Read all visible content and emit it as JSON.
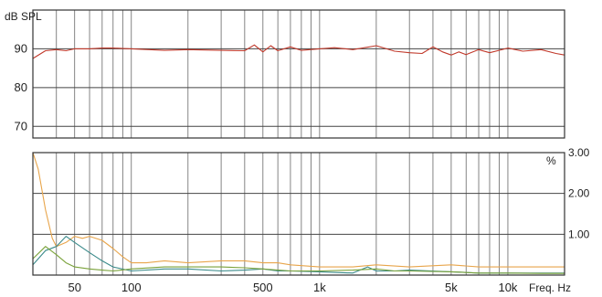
{
  "chart_data": [
    {
      "type": "line",
      "ylabel": "dB SPL",
      "xscale": "log",
      "xlim": [
        30,
        20000
      ],
      "ylim": [
        67,
        100
      ],
      "yticks": [
        90,
        80,
        70
      ],
      "grid": true,
      "series": [
        {
          "color": "#c0392b",
          "x": [
            30,
            35,
            40,
            45,
            50,
            60,
            70,
            80,
            100,
            150,
            200,
            300,
            400,
            450,
            500,
            550,
            600,
            700,
            800,
            1000,
            1200,
            1500,
            2000,
            2500,
            3000,
            3500,
            4000,
            4500,
            5000,
            5500,
            6000,
            7000,
            8000,
            10000,
            12000,
            15000,
            18000,
            20000
          ],
          "y": [
            87.5,
            89.5,
            89.8,
            89.5,
            90,
            90,
            90.2,
            90.2,
            90,
            89.6,
            89.8,
            89.6,
            89.5,
            91,
            89.2,
            90.8,
            89.5,
            90.5,
            89.6,
            90,
            90.3,
            89.8,
            90.8,
            89.4,
            89,
            88.8,
            90.5,
            89.2,
            88.4,
            89.2,
            88.5,
            89.8,
            89,
            90.2,
            89.4,
            89.8,
            88.8,
            88.4
          ]
        }
      ]
    },
    {
      "type": "line",
      "xlabel": "Freq. Hz",
      "xscale": "log",
      "xlim": [
        30,
        20000
      ],
      "ylim": [
        0,
        3.0
      ],
      "yunit": "%",
      "yticks": [
        {
          "value": 3.0,
          "label": "3.00"
        },
        {
          "value": 2.0,
          "label": "2.00"
        },
        {
          "value": 1.0,
          "label": "1.00"
        }
      ],
      "xticks": [
        {
          "value": 50,
          "label": "50"
        },
        {
          "value": 100,
          "label": "100"
        },
        {
          "value": 500,
          "label": "500"
        },
        {
          "value": 1000,
          "label": "1k"
        },
        {
          "value": 5000,
          "label": "5k"
        },
        {
          "value": 10000,
          "label": "10k"
        }
      ],
      "grid": true,
      "series": [
        {
          "color": "#e8a54b",
          "x": [
            30,
            32,
            35,
            38,
            40,
            45,
            50,
            55,
            60,
            70,
            80,
            90,
            100,
            120,
            150,
            200,
            300,
            400,
            500,
            600,
            700,
            1000,
            1500,
            2000,
            3000,
            5000,
            7000,
            10000,
            15000,
            20000
          ],
          "y": [
            3.0,
            2.6,
            1.6,
            0.9,
            0.7,
            0.8,
            0.95,
            0.9,
            0.95,
            0.85,
            0.65,
            0.45,
            0.3,
            0.3,
            0.35,
            0.3,
            0.35,
            0.35,
            0.3,
            0.3,
            0.25,
            0.2,
            0.2,
            0.25,
            0.2,
            0.25,
            0.2,
            0.2,
            0.2,
            0.2
          ]
        },
        {
          "color": "#3a8a8a",
          "x": [
            30,
            35,
            40,
            45,
            50,
            60,
            70,
            80,
            100,
            150,
            200,
            300,
            400,
            500,
            600,
            700,
            1000,
            1500,
            1800,
            2000,
            2500,
            3000,
            5000,
            7000,
            10000,
            15000,
            20000
          ],
          "y": [
            0.25,
            0.6,
            0.7,
            0.95,
            0.8,
            0.55,
            0.35,
            0.2,
            0.1,
            0.15,
            0.15,
            0.1,
            0.12,
            0.15,
            0.1,
            0.1,
            0.08,
            0.05,
            0.2,
            0.1,
            0.1,
            0.12,
            0.08,
            0.05,
            0.05,
            0.05,
            0.05
          ]
        },
        {
          "color": "#7aa23a",
          "x": [
            30,
            35,
            40,
            45,
            50,
            60,
            70,
            80,
            100,
            150,
            200,
            300,
            400,
            500,
            700,
            1000,
            1500,
            2000,
            2500,
            3000,
            5000,
            7000,
            10000,
            15000,
            20000
          ],
          "y": [
            0.4,
            0.7,
            0.5,
            0.3,
            0.2,
            0.15,
            0.12,
            0.1,
            0.15,
            0.2,
            0.2,
            0.2,
            0.18,
            0.15,
            0.1,
            0.1,
            0.12,
            0.15,
            0.1,
            0.1,
            0.08,
            0.05,
            0.05,
            0.04,
            0.04
          ]
        }
      ]
    }
  ]
}
